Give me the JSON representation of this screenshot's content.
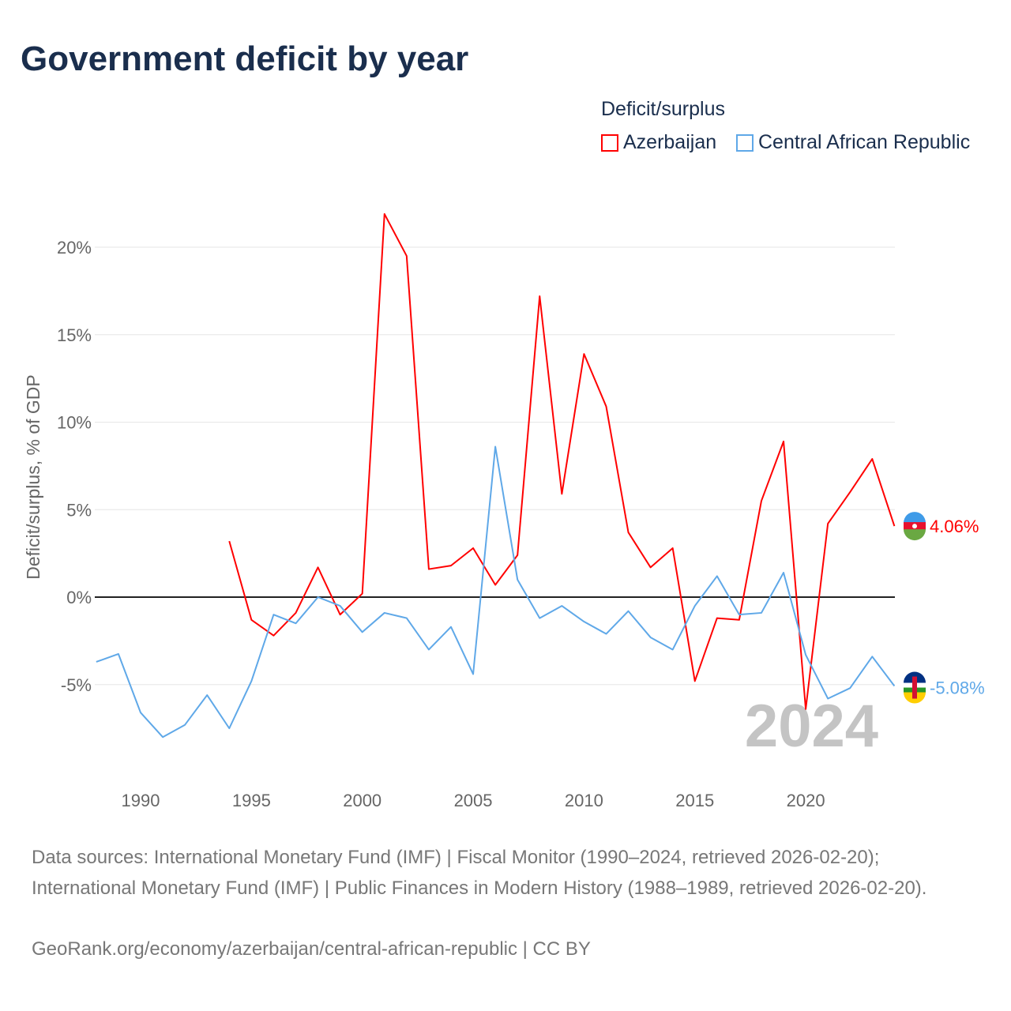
{
  "title": "Government deficit by year",
  "legend": {
    "title": "Deficit/surplus"
  },
  "chart_data": {
    "type": "line",
    "title": "Government deficit by year",
    "ylabel": "Deficit/surplus, % of GDP",
    "xlabel": "",
    "xlim": [
      1988,
      2024
    ],
    "ylim": [
      -10,
      22
    ],
    "x_ticks": [
      1990,
      1995,
      2000,
      2005,
      2010,
      2015,
      2020
    ],
    "x_tick_labels": [
      "1990",
      "1995",
      "2000",
      "2005",
      "2010",
      "2015",
      "2020"
    ],
    "y_ticks": [
      -5,
      0,
      5,
      10,
      15,
      20
    ],
    "y_tick_labels": [
      "-5%",
      "0%",
      "5%",
      "10%",
      "15%",
      "20%"
    ],
    "grid": true,
    "legend_position": "top-right",
    "year_label": "2024",
    "series": [
      {
        "name": "Azerbaijan",
        "color": "#ff0000",
        "end_label": "4.06%",
        "x": [
          1994,
          1995,
          1996,
          1997,
          1998,
          1999,
          2000,
          2001,
          2002,
          2003,
          2004,
          2005,
          2006,
          2007,
          2008,
          2009,
          2010,
          2011,
          2012,
          2013,
          2014,
          2015,
          2016,
          2017,
          2018,
          2019,
          2020,
          2021,
          2022,
          2023,
          2024
        ],
        "values": [
          3.2,
          -1.3,
          -2.2,
          -0.9,
          1.7,
          -1.0,
          0.2,
          21.9,
          19.5,
          1.6,
          1.8,
          2.8,
          0.7,
          2.4,
          17.2,
          5.9,
          13.9,
          10.9,
          3.7,
          1.7,
          2.8,
          -4.8,
          -1.2,
          -1.3,
          5.5,
          8.9,
          -6.4,
          4.2,
          6.0,
          7.9,
          4.06
        ]
      },
      {
        "name": "Central African Republic",
        "color": "#5fa8e8",
        "end_label": "-5.08%",
        "x": [
          1988,
          1989,
          1990,
          1991,
          1992,
          1993,
          1994,
          1995,
          1996,
          1997,
          1998,
          1999,
          2000,
          2001,
          2002,
          2003,
          2004,
          2005,
          2006,
          2007,
          2008,
          2009,
          2010,
          2011,
          2012,
          2013,
          2014,
          2015,
          2016,
          2017,
          2018,
          2019,
          2020,
          2021,
          2022,
          2023,
          2024
        ],
        "values": [
          -3.7,
          -3.25,
          -6.6,
          -8.0,
          -7.3,
          -5.6,
          -7.5,
          -4.8,
          -1.0,
          -1.5,
          0.0,
          -0.5,
          -2.0,
          -0.9,
          -1.2,
          -3.0,
          -1.7,
          -4.4,
          8.6,
          1.0,
          -1.2,
          -0.5,
          -1.4,
          -2.1,
          -0.8,
          -2.3,
          -3.0,
          -0.5,
          1.2,
          -1.0,
          -0.9,
          1.4,
          -3.3,
          -5.8,
          -5.2,
          -3.4,
          -5.08
        ]
      }
    ]
  },
  "sources": {
    "line1": "Data sources: International Monetary Fund (IMF) | Fiscal Monitor (1990–2024, retrieved 2026-02-20); International Monetary Fund (IMF) | Public Finances in Modern History (1988–1989, retrieved 2026-02-20).",
    "line2": "GeoRank.org/economy/azerbaijan/central-african-republic | CC BY"
  }
}
